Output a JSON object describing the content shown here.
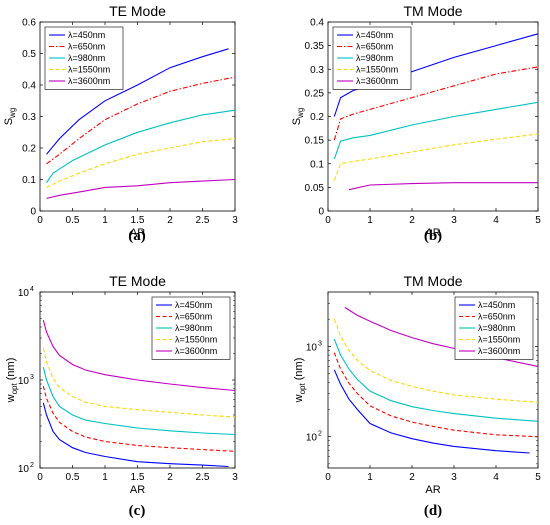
{
  "chart_data": [
    {
      "id": "a",
      "type": "line",
      "title": "TE Mode",
      "caption": "(a)",
      "xlabel": "AR",
      "ylabel": "S",
      "ylabel_sub": "wg",
      "xlim": [
        0,
        3
      ],
      "ylim": [
        0,
        0.6
      ],
      "yscale": "linear",
      "xticks": [
        0,
        0.5,
        1,
        1.5,
        2,
        2.5,
        3
      ],
      "xtick_labels": [
        "0",
        "0.5",
        "1",
        "1.5",
        "2",
        "2.5",
        "3"
      ],
      "yticks": [
        0,
        0.1,
        0.2,
        0.3,
        0.4,
        0.5,
        0.6
      ],
      "ytick_labels": [
        "0",
        "0.1",
        "0.2",
        "0.3",
        "0.4",
        "0.5",
        "0.6"
      ],
      "legend_position": "top-left",
      "series": [
        {
          "name": "λ=450nm",
          "color": "#0000ff",
          "dash": "solid",
          "x": [
            0.1,
            0.3,
            0.6,
            1.0,
            1.5,
            2.0,
            2.5,
            2.9
          ],
          "y": [
            0.18,
            0.23,
            0.29,
            0.35,
            0.4,
            0.455,
            0.49,
            0.515
          ]
        },
        {
          "name": "λ=650nm",
          "color": "#ff0000",
          "dash": "dashdot",
          "x": [
            0.1,
            0.3,
            0.6,
            1.0,
            1.5,
            2.0,
            2.5,
            3.0
          ],
          "y": [
            0.15,
            0.18,
            0.23,
            0.29,
            0.34,
            0.38,
            0.405,
            0.425
          ]
        },
        {
          "name": "λ=980nm",
          "color": "#00c0c0",
          "dash": "solid",
          "x": [
            0.1,
            0.2,
            0.5,
            1.0,
            1.5,
            2.0,
            2.5,
            3.0
          ],
          "y": [
            0.09,
            0.12,
            0.16,
            0.21,
            0.25,
            0.28,
            0.305,
            0.32
          ]
        },
        {
          "name": "λ=1550nm",
          "color": "#ffd700",
          "dash": "dashed",
          "x": [
            0.1,
            0.3,
            0.6,
            1.0,
            1.5,
            2.0,
            2.5,
            3.0
          ],
          "y": [
            0.075,
            0.095,
            0.12,
            0.15,
            0.18,
            0.2,
            0.22,
            0.23
          ]
        },
        {
          "name": "λ=3600nm",
          "color": "#c000c0",
          "dash": "solid",
          "x": [
            0.1,
            0.3,
            0.6,
            1.0,
            1.5,
            2.0,
            2.5,
            3.0
          ],
          "y": [
            0.04,
            0.05,
            0.06,
            0.075,
            0.08,
            0.09,
            0.095,
            0.1
          ]
        }
      ]
    },
    {
      "id": "b",
      "type": "line",
      "title": "TM Mode",
      "caption": "(b)",
      "xlabel": "AR",
      "ylabel": "S",
      "ylabel_sub": "wg",
      "xlim": [
        0,
        5
      ],
      "ylim": [
        0,
        0.4
      ],
      "yscale": "linear",
      "xticks": [
        0,
        1,
        2,
        3,
        4,
        5
      ],
      "xtick_labels": [
        "0",
        "1",
        "2",
        "3",
        "4",
        "5"
      ],
      "yticks": [
        0,
        0.05,
        0.1,
        0.15,
        0.2,
        0.25,
        0.3,
        0.35,
        0.4
      ],
      "ytick_labels": [
        "0",
        "0.05",
        "0.1",
        "0.15",
        "0.2",
        "0.25",
        "0.3",
        "0.35",
        "0.4"
      ],
      "legend_position": "top-left",
      "series": [
        {
          "name": "λ=450nm",
          "color": "#0000ff",
          "dash": "solid",
          "x": [
            0.15,
            0.3,
            0.6,
            1.0,
            2.0,
            3.0,
            4.0,
            5.0
          ],
          "y": [
            0.2,
            0.24,
            0.255,
            0.265,
            0.295,
            0.325,
            0.35,
            0.375
          ]
        },
        {
          "name": "λ=650nm",
          "color": "#ff0000",
          "dash": "dashdot",
          "x": [
            0.15,
            0.3,
            0.6,
            1.0,
            2.0,
            3.0,
            4.0,
            5.0
          ],
          "y": [
            0.15,
            0.195,
            0.205,
            0.215,
            0.24,
            0.265,
            0.29,
            0.305
          ]
        },
        {
          "name": "λ=980nm",
          "color": "#00c0c0",
          "dash": "solid",
          "x": [
            0.15,
            0.3,
            0.6,
            1.0,
            2.0,
            3.0,
            4.0,
            5.0
          ],
          "y": [
            0.11,
            0.148,
            0.155,
            0.16,
            0.182,
            0.2,
            0.215,
            0.23
          ]
        },
        {
          "name": "λ=1550nm",
          "color": "#ffd700",
          "dash": "dashed",
          "x": [
            0.15,
            0.3,
            0.6,
            1.0,
            2.0,
            3.0,
            4.0,
            5.0
          ],
          "y": [
            0.065,
            0.1,
            0.105,
            0.11,
            0.125,
            0.14,
            0.152,
            0.163
          ]
        },
        {
          "name": "λ=3600nm",
          "color": "#c000c0",
          "dash": "solid",
          "x": [
            0.5,
            1.0,
            2.0,
            3.0,
            4.0,
            5.0
          ],
          "y": [
            0.045,
            0.055,
            0.058,
            0.06,
            0.06,
            0.06
          ]
        }
      ]
    },
    {
      "id": "c",
      "type": "line",
      "title": "TE Mode",
      "caption": "(c)",
      "xlabel": "AR",
      "ylabel": "w",
      "ylabel_sub": "opt",
      "ylabel_suffix": " (nm)",
      "xlim": [
        0,
        3
      ],
      "ylim": [
        100,
        10000
      ],
      "yscale": "log",
      "xticks": [
        0,
        0.5,
        1,
        1.5,
        2,
        2.5,
        3
      ],
      "xtick_labels": [
        "0",
        "0.5",
        "1",
        "1.5",
        "2",
        "2.5",
        "3"
      ],
      "yticks": [
        100,
        1000,
        10000
      ],
      "ytick_base": "10",
      "ytick_exponents": [
        "2",
        "3",
        "4"
      ],
      "legend_position": "top-right",
      "series": [
        {
          "name": "λ=450nm",
          "color": "#0000ff",
          "dash": "solid",
          "x": [
            0.05,
            0.1,
            0.2,
            0.3,
            0.5,
            0.7,
            1.0,
            1.5,
            2.0,
            2.5,
            2.9
          ],
          "y": [
            550,
            400,
            260,
            210,
            170,
            150,
            135,
            118,
            112,
            108,
            104
          ]
        },
        {
          "name": "λ=650nm",
          "color": "#ff0000",
          "dash": "dashed",
          "x": [
            0.05,
            0.1,
            0.2,
            0.3,
            0.5,
            0.7,
            1.0,
            1.5,
            2.0,
            2.5,
            3.0
          ],
          "y": [
            850,
            620,
            420,
            330,
            260,
            225,
            200,
            180,
            170,
            162,
            155
          ]
        },
        {
          "name": "λ=980nm",
          "color": "#00c0c0",
          "dash": "solid",
          "x": [
            0.05,
            0.1,
            0.2,
            0.3,
            0.5,
            0.7,
            1.0,
            1.5,
            2.0,
            2.5,
            3.0
          ],
          "y": [
            1400,
            1000,
            650,
            500,
            400,
            350,
            320,
            285,
            265,
            250,
            240
          ]
        },
        {
          "name": "λ=1550nm",
          "color": "#ffd700",
          "dash": "dashed",
          "x": [
            0.05,
            0.1,
            0.2,
            0.3,
            0.5,
            0.7,
            1.0,
            1.5,
            2.0,
            2.5,
            3.0
          ],
          "y": [
            2300,
            1600,
            1050,
            820,
            650,
            560,
            500,
            460,
            430,
            400,
            380
          ]
        },
        {
          "name": "λ=3600nm",
          "color": "#c000c0",
          "dash": "solid",
          "x": [
            0.05,
            0.1,
            0.2,
            0.3,
            0.5,
            0.7,
            1.0,
            1.5,
            2.0,
            2.5,
            3.0
          ],
          "y": [
            4800,
            3500,
            2400,
            1900,
            1500,
            1300,
            1150,
            1000,
            900,
            820,
            760
          ]
        }
      ]
    },
    {
      "id": "d",
      "type": "line",
      "title": "TM Mode",
      "caption": "(d)",
      "xlabel": "AR",
      "ylabel": "w",
      "ylabel_sub": "opt",
      "ylabel_suffix": " (nm)",
      "xlim": [
        0,
        5
      ],
      "ylim": [
        45,
        4000
      ],
      "yscale": "log",
      "xticks": [
        0,
        1,
        2,
        3,
        4,
        5
      ],
      "xtick_labels": [
        "0",
        "1",
        "2",
        "3",
        "4",
        "5"
      ],
      "yticks": [
        100,
        1000
      ],
      "ytick_base": "10",
      "ytick_exponents": [
        "2",
        "3"
      ],
      "legend_position": "top-right",
      "series": [
        {
          "name": "λ=450nm",
          "color": "#0000ff",
          "dash": "solid",
          "x": [
            0.15,
            0.3,
            0.5,
            0.7,
            1.0,
            1.5,
            2.0,
            2.5,
            3.0,
            4.0,
            4.8
          ],
          "y": [
            550,
            380,
            260,
            200,
            140,
            110,
            95,
            85,
            78,
            70,
            66
          ]
        },
        {
          "name": "λ=650nm",
          "color": "#ff0000",
          "dash": "dashed",
          "x": [
            0.15,
            0.3,
            0.5,
            0.7,
            1.0,
            1.5,
            2.0,
            2.5,
            3.0,
            4.0,
            5.0
          ],
          "y": [
            850,
            560,
            390,
            300,
            220,
            170,
            145,
            130,
            118,
            105,
            100
          ]
        },
        {
          "name": "λ=980nm",
          "color": "#00c0c0",
          "dash": "solid",
          "x": [
            0.15,
            0.3,
            0.5,
            0.7,
            1.0,
            1.5,
            2.0,
            2.5,
            3.0,
            4.0,
            5.0
          ],
          "y": [
            1200,
            800,
            560,
            430,
            320,
            250,
            215,
            195,
            180,
            160,
            148
          ]
        },
        {
          "name": "λ=1550nm",
          "color": "#ffd700",
          "dash": "dashed",
          "x": [
            0.15,
            0.3,
            0.5,
            0.7,
            1.0,
            1.5,
            2.0,
            2.5,
            3.0,
            4.0,
            5.0
          ],
          "y": [
            2000,
            1300,
            900,
            700,
            540,
            420,
            360,
            320,
            290,
            260,
            240
          ]
        },
        {
          "name": "λ=3600nm",
          "color": "#c000c0",
          "dash": "solid",
          "x": [
            0.4,
            0.7,
            1.0,
            1.5,
            2.0,
            2.5,
            3.0,
            4.0,
            5.0
          ],
          "y": [
            2700,
            2200,
            1900,
            1500,
            1250,
            1070,
            950,
            750,
            600
          ]
        }
      ]
    }
  ]
}
